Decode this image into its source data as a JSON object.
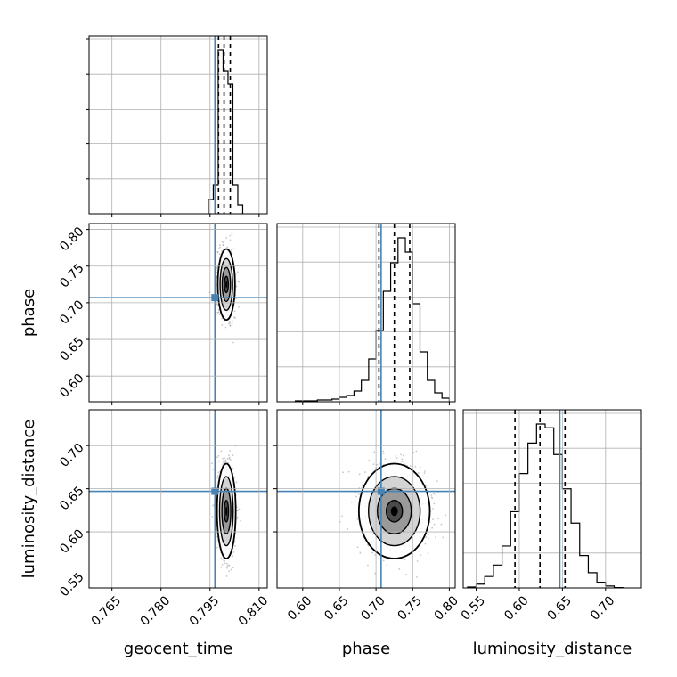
{
  "colors": {
    "truth": "#4682b4",
    "hist": "#000000",
    "grid": "#b0b0b0",
    "points": "#9a9a9a"
  },
  "chart_data": {
    "type": "corner",
    "grid": true,
    "parameters": [
      {
        "name": "geocent_time",
        "range": [
          0.758,
          0.8125
        ],
        "ticks": [
          0.765,
          0.78,
          0.795,
          0.81
        ],
        "tick_labels": [
          "0.765",
          "0.780",
          "0.795",
          "0.810"
        ],
        "truth": 0.7965,
        "quantiles": [
          0.7976,
          0.7993,
          0.8012
        ]
      },
      {
        "name": "phase",
        "range": [
          0.565,
          0.808
        ],
        "ticks": [
          0.6,
          0.65,
          0.7,
          0.75,
          0.8
        ],
        "tick_labels": [
          "0.60",
          "0.65",
          "0.70",
          "0.75",
          "0.80"
        ],
        "truth": 0.707,
        "quantiles": [
          0.704,
          0.725,
          0.746
        ]
      },
      {
        "name": "luminosity_distance",
        "range": [
          0.535,
          0.7415
        ],
        "ticks": [
          0.55,
          0.6,
          0.65,
          0.7
        ],
        "tick_labels": [
          "0.55",
          "0.60",
          "0.65",
          "0.70"
        ],
        "truth": 0.647,
        "quantiles": [
          0.595,
          0.624,
          0.653
        ]
      }
    ],
    "histograms": [
      {
        "param": "geocent_time",
        "bin_edges": [
          0.7945,
          0.796,
          0.7975,
          0.799,
          0.8005,
          0.802,
          0.8035,
          0.805
        ],
        "counts": [
          0.08,
          0.16,
          0.92,
          0.8,
          0.73,
          0.16,
          0.05
        ]
      },
      {
        "param": "phase",
        "bin_edges": [
          0.59,
          0.6,
          0.61,
          0.62,
          0.63,
          0.64,
          0.65,
          0.66,
          0.67,
          0.68,
          0.69,
          0.7,
          0.71,
          0.72,
          0.73,
          0.74,
          0.75,
          0.76,
          0.77,
          0.78,
          0.79,
          0.8
        ],
        "counts": [
          0.005,
          0.005,
          0.005,
          0.01,
          0.01,
          0.015,
          0.025,
          0.035,
          0.06,
          0.12,
          0.24,
          0.4,
          0.62,
          0.78,
          0.92,
          0.84,
          0.55,
          0.28,
          0.12,
          0.05,
          0.02
        ]
      },
      {
        "param": "luminosity_distance",
        "bin_edges": [
          0.54,
          0.55,
          0.56,
          0.57,
          0.58,
          0.59,
          0.6,
          0.61,
          0.62,
          0.63,
          0.64,
          0.65,
          0.66,
          0.67,
          0.68,
          0.69,
          0.7,
          0.71,
          0.72
        ],
        "counts": [
          0.005,
          0.02,
          0.06,
          0.12,
          0.22,
          0.4,
          0.6,
          0.76,
          0.86,
          0.84,
          0.7,
          0.52,
          0.34,
          0.17,
          0.08,
          0.03,
          0.01,
          0.002
        ]
      }
    ],
    "scatter_panels": [
      {
        "x": "geocent_time",
        "y": "phase",
        "center": [
          0.8,
          0.725
        ],
        "sd": [
          0.0012,
          0.022
        ]
      },
      {
        "x": "geocent_time",
        "y": "luminosity_distance",
        "center": [
          0.8,
          0.624
        ],
        "sd": [
          0.0013,
          0.025
        ]
      },
      {
        "x": "phase",
        "y": "luminosity_distance",
        "center": [
          0.725,
          0.624
        ],
        "sd": [
          0.022,
          0.025
        ]
      }
    ]
  }
}
